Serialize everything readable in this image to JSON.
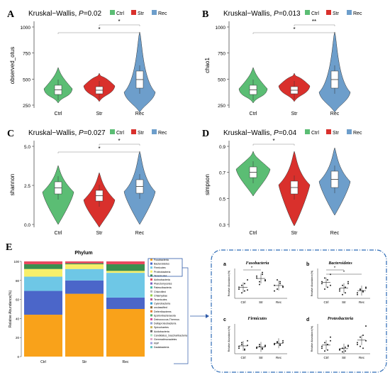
{
  "colors": {
    "ctrl": "#5bbd74",
    "str": "#d9302c",
    "rec": "#6d9ecb",
    "box": "#ffffff",
    "frame": "#2e6cb6"
  },
  "panels": [
    {
      "letter": "A",
      "stat": "Kruskal−Wallis, ",
      "p": "P",
      "pv": "=0.02",
      "ylabel": "observed_otus",
      "yticks": [
        "250",
        "500",
        "750",
        "1000"
      ],
      "sig": [
        "*",
        "*"
      ]
    },
    {
      "letter": "B",
      "stat": "Kruskal−Wallis, ",
      "p": "P",
      "pv": "=0.013",
      "ylabel": "chao1",
      "yticks": [
        "250",
        "500",
        "750",
        "1000"
      ],
      "sig": [
        "*",
        "**"
      ]
    },
    {
      "letter": "C",
      "stat": "Kruskal−Wallis, ",
      "p": "P",
      "pv": "=0.027",
      "ylabel": "shannon",
      "yticks": [
        "0.0",
        "2.5",
        "5.0"
      ],
      "sig": [
        "*",
        "*"
      ]
    },
    {
      "letter": "D",
      "stat": "Kruskal−Wallis, ",
      "p": "P",
      "pv": "=0.04",
      "ylabel": "simpson",
      "yticks": [
        "0.3",
        "0.5",
        "0.7",
        "0.9"
      ],
      "sig": [
        "*"
      ]
    }
  ],
  "legend": [
    "Ctrl",
    "Str",
    "Rec"
  ],
  "groups": [
    "Ctrl",
    "Str",
    "Rec"
  ],
  "panel_e": {
    "letter": "E",
    "title": "Phylum",
    "ylabel": "Relative Abundance(%)",
    "yticks": [
      "0",
      "20",
      "40",
      "60",
      "80",
      "100"
    ],
    "xcats": [
      "Ctrl",
      "Str",
      "Rec"
    ],
    "taxa": [
      "Fusobacteria",
      "Bacteroidetes",
      "Firmicutes",
      "Proteobacteria",
      "Tenericutes",
      "Actinobacteria",
      "Planctomycetes",
      "Patescibacteria",
      "Chloroflexi",
      "Chlamydiae",
      "Tenericutes",
      "Cyanobacteria",
      "unclassified",
      "Deferribacteres",
      "Epsilonbacteraeota",
      "Deinococcus-Thermus",
      "Deltaproteobacteria",
      "Spirochaetes",
      "Acidobacteria",
      "Candidatus_Saccharibacteria",
      "Gemmatimonadetes",
      "FBP",
      "Dadabacteria"
    ],
    "taxa_colors": [
      "#f9a21a",
      "#4b66c9",
      "#6ec7e6",
      "#f7ef6a",
      "#3a8f4e",
      "#e84a5f",
      "#7b5fbf",
      "#3fb8a8",
      "#b5b5b5",
      "#9ad04b",
      "#c05a8c",
      "#2f9ed8",
      "#8c6d3e",
      "#e37b34",
      "#56b06e",
      "#d94f9a",
      "#8aa0d8",
      "#c9b458",
      "#6a6a6a",
      "#a6e0c0",
      "#e0a6c8",
      "#a0a0e0",
      "#60c0c0"
    ],
    "stack_data": [
      {
        "cat": "Ctrl",
        "layers": [
          44,
          25,
          15,
          8,
          5,
          3
        ]
      },
      {
        "cat": "Str",
        "layers": [
          66,
          14,
          12,
          5,
          1,
          2
        ]
      },
      {
        "cat": "Rec",
        "layers": [
          50,
          12,
          26,
          2,
          7,
          3
        ]
      }
    ]
  },
  "sub_panels": [
    {
      "letter": "a",
      "title": "Fusobacteria",
      "ylabel": "Relative Abundance(%)",
      "sig": [
        "*"
      ]
    },
    {
      "letter": "b",
      "title": "Bacteroidetes",
      "ylabel": "Relative Abundance(%)",
      "sig": [
        "*",
        "*"
      ]
    },
    {
      "letter": "c",
      "title": "Firmicutes",
      "ylabel": "Relative Abundance(%)",
      "sig": []
    },
    {
      "letter": "d",
      "title": "Proteobacteria",
      "ylabel": "Relative Abundance(%)",
      "sig": []
    }
  ],
  "chart_data": {
    "type": "bar",
    "title": "Phylum",
    "categories": [
      "Ctrl",
      "Str",
      "Rec"
    ],
    "ylabel": "Relative Abundance(%)",
    "ylim": [
      0,
      100
    ],
    "series": [
      {
        "name": "Fusobacteria",
        "values": [
          44,
          66,
          50
        ]
      },
      {
        "name": "Bacteroidetes",
        "values": [
          25,
          14,
          12
        ]
      },
      {
        "name": "Firmicutes",
        "values": [
          15,
          12,
          26
        ]
      },
      {
        "name": "Proteobacteria",
        "values": [
          8,
          5,
          2
        ]
      },
      {
        "name": "Tenericutes",
        "values": [
          5,
          1,
          7
        ]
      },
      {
        "name": "Actinobacteria",
        "values": [
          3,
          2,
          3
        ]
      }
    ]
  }
}
